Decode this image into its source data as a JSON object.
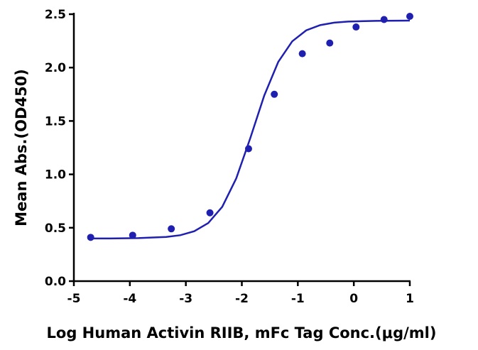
{
  "chart_data": {
    "type": "scatter",
    "x_label": "Log Human Activin RIIB, mFc Tag Conc.(μg/ml)",
    "y_label": "Mean Abs.(OD450)",
    "x": [
      -4.7,
      -3.95,
      -3.26,
      -2.57,
      -1.88,
      -1.42,
      -0.92,
      -0.43,
      0.04,
      0.54,
      1.0
    ],
    "values": [
      0.41,
      0.43,
      0.49,
      0.64,
      1.24,
      1.75,
      2.13,
      2.23,
      2.38,
      2.45,
      2.48
    ],
    "color": "#1f1fb0",
    "fit": {
      "x": [
        -4.7,
        -4.35,
        -3.85,
        -3.35,
        -3.1,
        -2.85,
        -2.6,
        -2.35,
        -2.1,
        -1.85,
        -1.6,
        -1.35,
        -1.1,
        -0.85,
        -0.6,
        -0.35,
        -0.1,
        0.4,
        1.0
      ],
      "values": [
        0.4,
        0.4,
        0.403,
        0.414,
        0.43,
        0.467,
        0.544,
        0.696,
        0.962,
        1.338,
        1.738,
        2.053,
        2.246,
        2.349,
        2.398,
        2.421,
        2.431,
        2.438,
        2.44
      ]
    },
    "xlim": [
      -5,
      1
    ],
    "xticks": [
      -5,
      -4,
      -3,
      -2,
      -1,
      0,
      1
    ],
    "ylim": [
      0,
      2.5
    ],
    "yticks": [
      {
        "value": 0,
        "label": "0.0"
      },
      0.5,
      {
        "value": 1,
        "label": "1.0"
      },
      1.5,
      {
        "value": 2,
        "label": "2.0"
      },
      2.5
    ]
  }
}
